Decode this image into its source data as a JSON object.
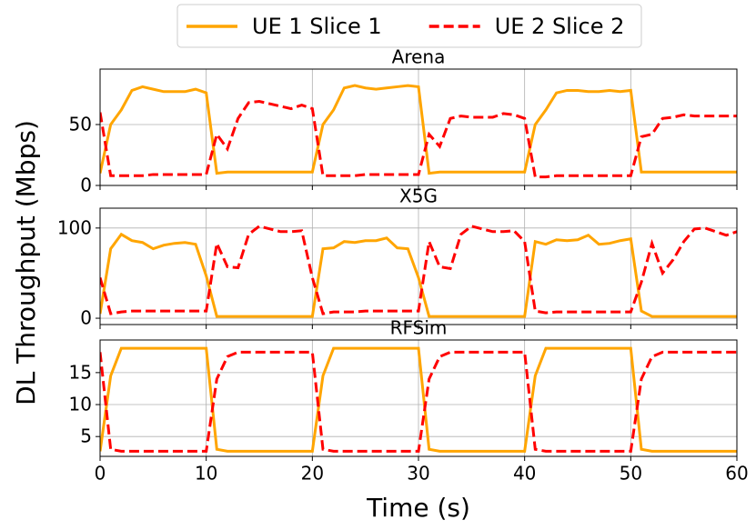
{
  "chart_data": [
    {
      "type": "line",
      "title": "Arena",
      "legend": "top",
      "x": [
        0,
        1,
        2,
        3,
        4,
        5,
        6,
        7,
        8,
        9,
        10,
        11,
        12,
        13,
        14,
        15,
        16,
        17,
        18,
        19,
        20,
        21,
        22,
        23,
        24,
        25,
        26,
        27,
        28,
        29,
        30,
        31,
        32,
        33,
        34,
        35,
        36,
        37,
        38,
        39,
        40,
        41,
        42,
        43,
        44,
        45,
        46,
        47,
        48,
        49,
        50,
        51,
        52,
        53,
        54,
        55,
        56,
        57,
        58,
        59,
        60
      ],
      "series": [
        {
          "name": "UE 1 Slice 1",
          "color": "#ffa500",
          "dash": "solid",
          "values": [
            10,
            50,
            62,
            78,
            81,
            79,
            77,
            77,
            77,
            79,
            76,
            10,
            11,
            11,
            11,
            11,
            11,
            11,
            11,
            11,
            11,
            50,
            62,
            80,
            82,
            80,
            79,
            80,
            81,
            82,
            81,
            10,
            11,
            11,
            11,
            11,
            11,
            11,
            11,
            11,
            11,
            50,
            62,
            76,
            78,
            78,
            77,
            77,
            78,
            77,
            78,
            11,
            11,
            11,
            11,
            11,
            11,
            11,
            11,
            11,
            11
          ]
        },
        {
          "name": "UE 2 Slice 2",
          "color": "#ff0000",
          "dash": "dashed",
          "values": [
            60,
            8,
            8,
            8,
            8,
            9,
            9,
            9,
            9,
            9,
            9,
            42,
            30,
            55,
            68,
            69,
            67,
            65,
            63,
            66,
            63,
            8,
            8,
            8,
            8,
            9,
            9,
            9,
            9,
            9,
            9,
            42,
            32,
            55,
            57,
            56,
            56,
            56,
            59,
            58,
            55,
            7,
            7,
            8,
            8,
            8,
            8,
            8,
            8,
            8,
            8,
            40,
            42,
            55,
            56,
            58,
            57,
            57,
            57,
            57,
            57
          ]
        }
      ],
      "xlim": [
        0,
        60
      ],
      "xticks": [
        0,
        10,
        20,
        30,
        40,
        50,
        60
      ],
      "ylim": [
        0,
        95.5
      ],
      "yticks": [
        0,
        50
      ],
      "grid": true
    },
    {
      "type": "line",
      "title": "X5G",
      "ylabel": "DL Throughput (Mbps)",
      "x": [
        0,
        1,
        2,
        3,
        4,
        5,
        6,
        7,
        8,
        9,
        10,
        11,
        12,
        13,
        14,
        15,
        16,
        17,
        18,
        19,
        20,
        21,
        22,
        23,
        24,
        25,
        26,
        27,
        28,
        29,
        30,
        31,
        32,
        33,
        34,
        35,
        36,
        37,
        38,
        39,
        40,
        41,
        42,
        43,
        44,
        45,
        46,
        47,
        48,
        49,
        50,
        51,
        52,
        53,
        54,
        55,
        56,
        57,
        58,
        59,
        60
      ],
      "series": [
        {
          "color": "#ffa500",
          "dash": "solid",
          "values": [
            5,
            77,
            93,
            86,
            84,
            77,
            81,
            83,
            84,
            82,
            47,
            2,
            2,
            2,
            2,
            2,
            2,
            2,
            2,
            2,
            2,
            77,
            78,
            85,
            84,
            86,
            86,
            89,
            78,
            77,
            45,
            2,
            2,
            2,
            2,
            2,
            2,
            2,
            2,
            2,
            2,
            85,
            82,
            87,
            86,
            87,
            92,
            82,
            83,
            86,
            88,
            8,
            2,
            2,
            2,
            2,
            2,
            2,
            2,
            2,
            2
          ]
        },
        {
          "color": "#ff0000",
          "dash": "dashed",
          "values": [
            45,
            5,
            7,
            8,
            8,
            8,
            8,
            8,
            8,
            8,
            8,
            83,
            57,
            56,
            93,
            102,
            99,
            96,
            96,
            97,
            45,
            5,
            7,
            7,
            7,
            8,
            8,
            8,
            8,
            8,
            8,
            85,
            57,
            55,
            93,
            102,
            99,
            96,
            96,
            97,
            85,
            8,
            6,
            7,
            7,
            7,
            7,
            7,
            7,
            7,
            7,
            40,
            83,
            50,
            65,
            85,
            99,
            100,
            96,
            92,
            96
          ]
        }
      ],
      "xlim": [
        0,
        60
      ],
      "xticks": [
        0,
        10,
        20,
        30,
        40,
        50,
        60
      ],
      "ylim": [
        -7,
        122
      ],
      "yticks": [
        0,
        100
      ],
      "grid": true
    },
    {
      "type": "line",
      "title": "RFSim",
      "xlabel": "Time (s)",
      "x": [
        0,
        1,
        2,
        3,
        4,
        5,
        6,
        7,
        8,
        9,
        10,
        11,
        12,
        13,
        14,
        15,
        16,
        17,
        18,
        19,
        20,
        21,
        22,
        23,
        24,
        25,
        26,
        27,
        28,
        29,
        30,
        31,
        32,
        33,
        34,
        35,
        36,
        37,
        38,
        39,
        40,
        41,
        42,
        43,
        44,
        45,
        46,
        47,
        48,
        49,
        50,
        51,
        52,
        53,
        54,
        55,
        56,
        57,
        58,
        59,
        60
      ],
      "series": [
        {
          "color": "#ffa500",
          "dash": "solid",
          "values": [
            2.7,
            14.5,
            18.8,
            18.8,
            18.8,
            18.8,
            18.8,
            18.8,
            18.8,
            18.8,
            18.8,
            3,
            2.7,
            2.7,
            2.7,
            2.7,
            2.7,
            2.7,
            2.7,
            2.7,
            2.7,
            14.5,
            18.8,
            18.8,
            18.8,
            18.8,
            18.8,
            18.8,
            18.8,
            18.8,
            18.8,
            3,
            2.7,
            2.7,
            2.7,
            2.7,
            2.7,
            2.7,
            2.7,
            2.7,
            2.7,
            14.5,
            18.8,
            18.8,
            18.8,
            18.8,
            18.8,
            18.8,
            18.8,
            18.8,
            18.8,
            3,
            2.7,
            2.7,
            2.7,
            2.7,
            2.7,
            2.7,
            2.7,
            2.7,
            2.7
          ]
        },
        {
          "color": "#ff0000",
          "dash": "dashed",
          "values": [
            18.2,
            3,
            2.7,
            2.7,
            2.7,
            2.7,
            2.7,
            2.7,
            2.7,
            2.7,
            2.7,
            14,
            17.5,
            18.2,
            18.2,
            18.2,
            18.2,
            18.2,
            18.2,
            18.2,
            18.2,
            3,
            2.7,
            2.7,
            2.7,
            2.7,
            2.7,
            2.7,
            2.7,
            2.7,
            2.7,
            14,
            17.5,
            18.2,
            18.2,
            18.2,
            18.2,
            18.2,
            18.2,
            18.2,
            18.2,
            3,
            2.7,
            2.7,
            2.7,
            2.7,
            2.7,
            2.7,
            2.7,
            2.7,
            2.7,
            14,
            17.5,
            18.2,
            18.2,
            18.2,
            18.2,
            18.2,
            18.2,
            18.2,
            18.2
          ]
        }
      ],
      "xlim": [
        0,
        60
      ],
      "xticks": [
        0,
        10,
        20,
        30,
        40,
        50,
        60
      ],
      "ylim": [
        1.9,
        20.1
      ],
      "yticks": [
        5,
        10,
        15
      ],
      "grid": true
    }
  ]
}
